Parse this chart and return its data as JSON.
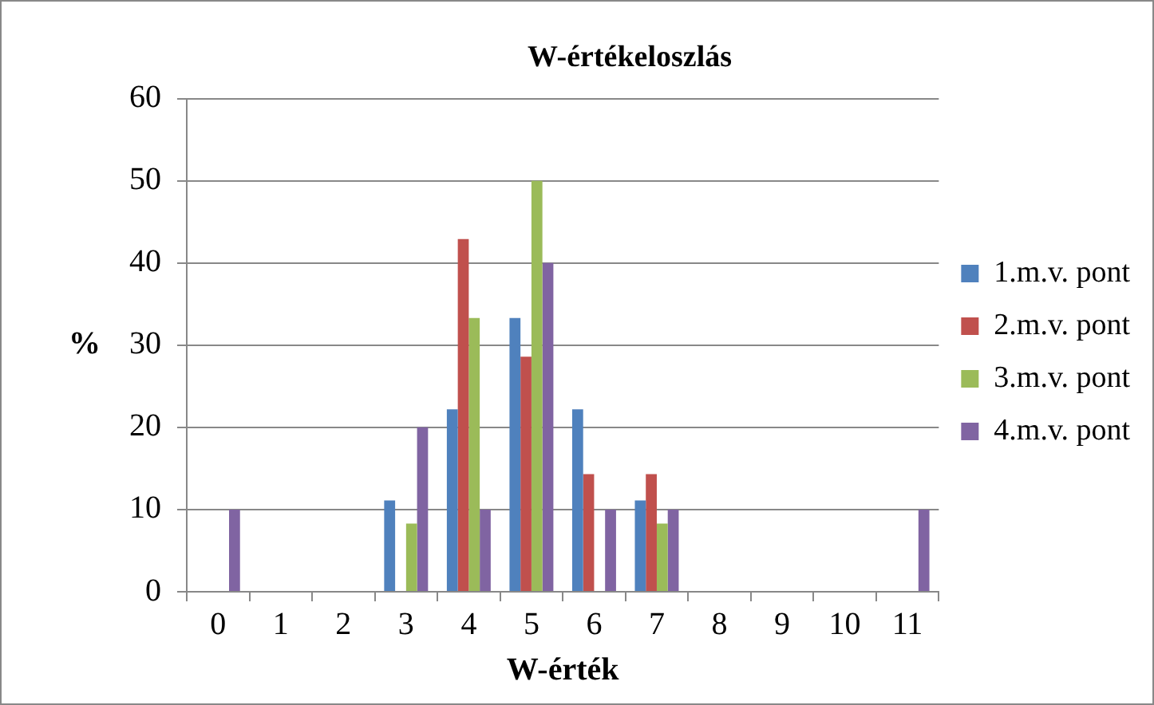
{
  "chart_data": {
    "type": "bar",
    "title": "W-értékeloszlás",
    "xlabel": "W-érték",
    "ylabel": "%",
    "categories": [
      "0",
      "1",
      "2",
      "3",
      "4",
      "5",
      "6",
      "7",
      "8",
      "9",
      "10",
      "11"
    ],
    "series": [
      {
        "name": "1.m.v. pont",
        "color": "#4f81bd",
        "values": [
          0,
          0,
          0,
          11.1,
          22.2,
          33.3,
          22.2,
          11.1,
          0,
          0,
          0,
          0
        ]
      },
      {
        "name": "2.m.v. pont",
        "color": "#c0504d",
        "values": [
          0,
          0,
          0,
          0,
          42.9,
          28.6,
          14.3,
          14.3,
          0,
          0,
          0,
          0
        ]
      },
      {
        "name": "3.m.v. pont",
        "color": "#9bbb59",
        "values": [
          0,
          0,
          0,
          8.3,
          33.3,
          50,
          0,
          8.3,
          0,
          0,
          0,
          0
        ]
      },
      {
        "name": "4.m.v. pont",
        "color": "#8064a2",
        "values": [
          10,
          0,
          0,
          20,
          10,
          40,
          10,
          10,
          0,
          0,
          0,
          10
        ]
      }
    ],
    "ylim": [
      0,
      60
    ],
    "yticks": [
      0,
      10,
      20,
      30,
      40,
      50,
      60
    ],
    "grid": "y",
    "legend": "right"
  }
}
